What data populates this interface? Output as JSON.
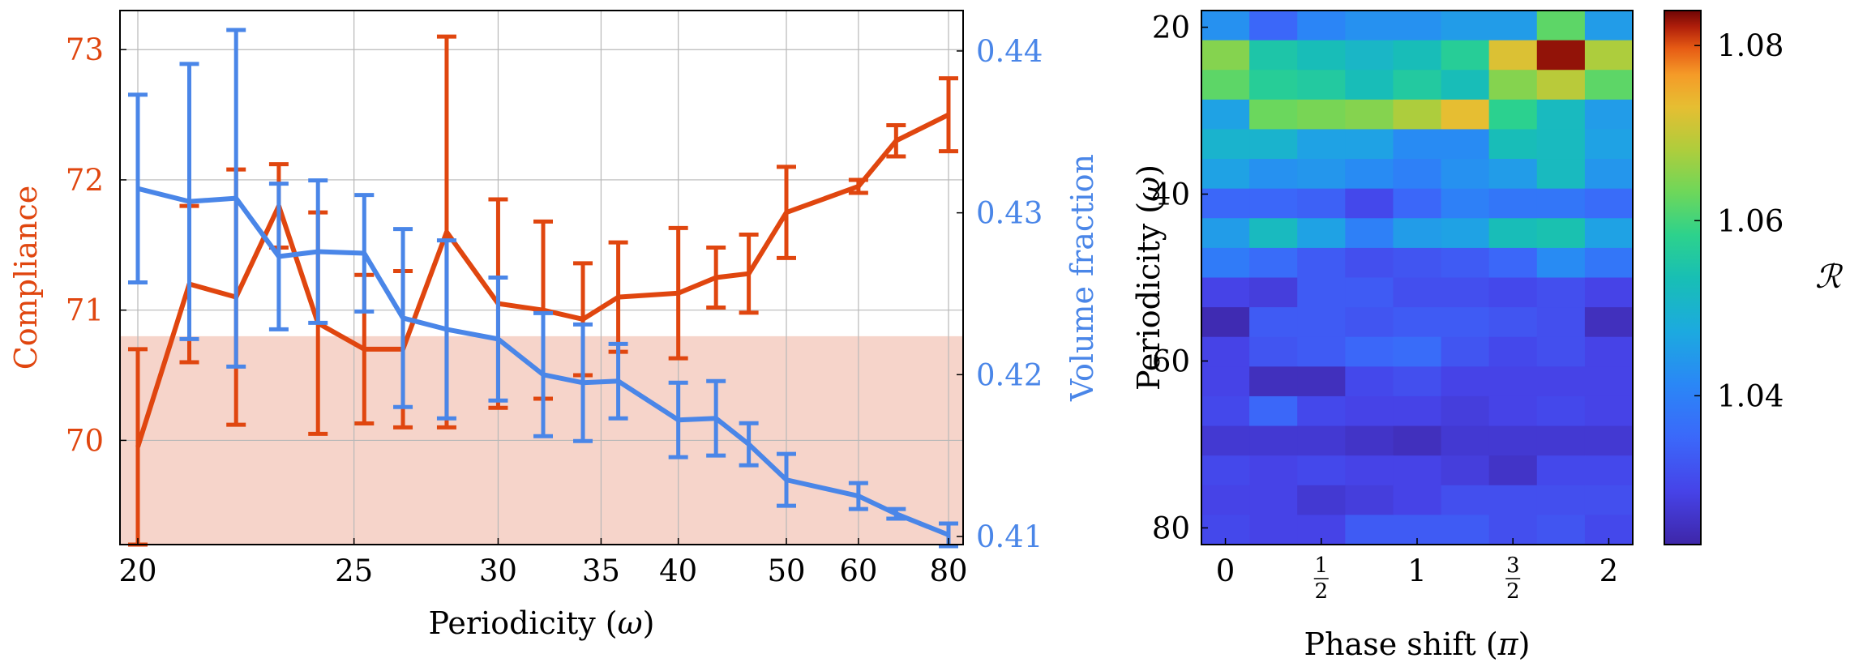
{
  "chart_data": [
    {
      "type": "line",
      "title": "",
      "xlabel": "Periodicity (ω)",
      "xlabel_main": "Periodicity (",
      "xlabel_var": "ω",
      "xlabel_close": ")",
      "x_scale": "reciprocal",
      "x_ticks": [
        "20",
        "25",
        "30",
        "35",
        "40",
        "50",
        "60",
        "80"
      ],
      "y_left": {
        "label": "Compliance",
        "color": "#e0460f",
        "range": [
          69.2,
          73.3
        ],
        "ticks": [
          70,
          71,
          72,
          73
        ]
      },
      "y_right": {
        "label": "Volume fraction",
        "color": "#4a86e8",
        "range": [
          0.4095,
          0.4425
        ],
        "ticks": [
          0.41,
          0.42,
          0.43,
          0.44
        ]
      },
      "grid": true,
      "shaded_region": {
        "axis": "left",
        "from": 69.2,
        "to": 70.8,
        "color": "#f6d4ca"
      },
      "x": [
        20,
        21,
        22,
        23,
        24,
        25.3,
        26.5,
        28,
        30,
        32,
        34,
        36,
        40,
        43,
        46,
        50,
        60,
        67,
        80
      ],
      "series": [
        {
          "name": "Compliance",
          "axis": "left",
          "color": "#e0460f",
          "values": [
            69.95,
            71.2,
            71.1,
            71.8,
            70.9,
            70.7,
            70.7,
            71.6,
            71.05,
            71.0,
            70.93,
            71.1,
            71.13,
            71.25,
            71.28,
            71.75,
            71.95,
            72.3,
            72.5
          ],
          "errors": [
            0.75,
            0.6,
            0.98,
            0.32,
            0.85,
            0.57,
            0.6,
            1.5,
            0.8,
            0.68,
            0.43,
            0.42,
            0.5,
            0.23,
            0.3,
            0.35,
            0.05,
            0.12,
            0.28
          ]
        },
        {
          "name": "Volume fraction",
          "axis": "right",
          "color": "#4a86e8",
          "values": [
            0.4315,
            0.4307,
            0.4309,
            0.4273,
            0.4276,
            0.4275,
            0.4235,
            0.4228,
            0.4222,
            0.42,
            0.4195,
            0.4196,
            0.4172,
            0.4173,
            0.4157,
            0.4135,
            0.4125,
            0.4114,
            0.4101
          ],
          "errors": [
            0.0058,
            0.0085,
            0.0104,
            0.0045,
            0.0044,
            0.0036,
            0.0055,
            0.0055,
            0.0038,
            0.0038,
            0.0036,
            0.0023,
            0.0023,
            0.0023,
            0.0013,
            0.0016,
            0.0008,
            0.0003,
            0.0007
          ]
        }
      ]
    },
    {
      "type": "heatmap",
      "title": "",
      "xlabel": "Phase shift (π)",
      "xlabel_main": "Phase shift (",
      "xlabel_var": "π",
      "xlabel_close": ")",
      "ylabel": "Periodicity (ω)",
      "ylabel_main": "Periodicity (",
      "ylabel_var": "ω",
      "ylabel_close": ")",
      "x_ticks": [
        {
          "v": 0,
          "label": "0"
        },
        {
          "v": 0.5,
          "num": "1",
          "den": "2"
        },
        {
          "v": 1,
          "label": "1"
        },
        {
          "v": 1.5,
          "num": "3",
          "den": "2"
        },
        {
          "v": 2,
          "label": "2"
        }
      ],
      "x_range": [
        -0.125,
        2.125
      ],
      "y_ticks": [
        20,
        40,
        60,
        80
      ],
      "y_range": [
        18,
        82
      ],
      "colorbar": {
        "label": "ℛ",
        "range": [
          1.023,
          1.084
        ],
        "ticks": [
          "1.04",
          "1.06",
          "1.08"
        ],
        "tick_values": [
          1.04,
          1.06,
          1.08
        ]
      },
      "rows": 18,
      "cols": 9,
      "values": [
        [
          1.043,
          1.035,
          1.041,
          1.043,
          1.043,
          1.045,
          1.045,
          1.062,
          1.045
        ],
        [
          1.065,
          1.055,
          1.053,
          1.051,
          1.053,
          1.057,
          1.072,
          1.083,
          1.068
        ],
        [
          1.062,
          1.057,
          1.056,
          1.053,
          1.056,
          1.053,
          1.065,
          1.069,
          1.062
        ],
        [
          1.046,
          1.063,
          1.064,
          1.065,
          1.068,
          1.073,
          1.058,
          1.052,
          1.045
        ],
        [
          1.05,
          1.05,
          1.046,
          1.046,
          1.042,
          1.042,
          1.053,
          1.052,
          1.046
        ],
        [
          1.046,
          1.043,
          1.044,
          1.042,
          1.04,
          1.043,
          1.045,
          1.052,
          1.044
        ],
        [
          1.035,
          1.035,
          1.034,
          1.03,
          1.035,
          1.04,
          1.038,
          1.038,
          1.036
        ],
        [
          1.045,
          1.052,
          1.046,
          1.04,
          1.045,
          1.046,
          1.053,
          1.054,
          1.046
        ],
        [
          1.039,
          1.036,
          1.033,
          1.031,
          1.032,
          1.033,
          1.035,
          1.042,
          1.038
        ],
        [
          1.029,
          1.028,
          1.033,
          1.033,
          1.031,
          1.031,
          1.03,
          1.031,
          1.029
        ],
        [
          1.024,
          1.033,
          1.033,
          1.032,
          1.033,
          1.033,
          1.032,
          1.031,
          1.025
        ],
        [
          1.029,
          1.032,
          1.033,
          1.035,
          1.036,
          1.032,
          1.03,
          1.031,
          1.029
        ],
        [
          1.029,
          1.025,
          1.025,
          1.03,
          1.031,
          1.029,
          1.029,
          1.029,
          1.029
        ],
        [
          1.03,
          1.035,
          1.03,
          1.029,
          1.029,
          1.028,
          1.029,
          1.03,
          1.029
        ],
        [
          1.027,
          1.027,
          1.027,
          1.026,
          1.025,
          1.027,
          1.027,
          1.027,
          1.027
        ],
        [
          1.03,
          1.029,
          1.03,
          1.029,
          1.029,
          1.028,
          1.026,
          1.03,
          1.03
        ],
        [
          1.029,
          1.029,
          1.027,
          1.028,
          1.029,
          1.031,
          1.031,
          1.031,
          1.031
        ],
        [
          1.03,
          1.029,
          1.029,
          1.033,
          1.033,
          1.033,
          1.031,
          1.032,
          1.03
        ]
      ]
    }
  ]
}
